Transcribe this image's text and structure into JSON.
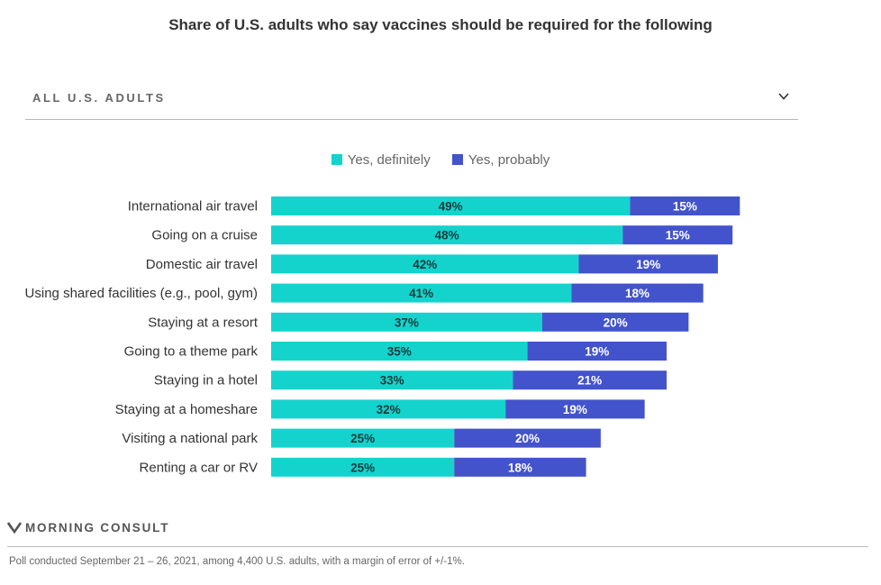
{
  "header": {
    "title": "Share of U.S. adults who say vaccines should be required for the following"
  },
  "filter": {
    "selected": "ALL U.S. ADULTS",
    "icon": "chevron-down-icon"
  },
  "colors": {
    "definitely": "#14d3cd",
    "probably": "#4353cc"
  },
  "chart_data": {
    "type": "bar",
    "orientation": "horizontal",
    "stacked": true,
    "categories": [
      "International air travel",
      "Going on a cruise",
      "Domestic air travel",
      "Using shared facilities (e.g., pool, gym)",
      "Staying at a resort",
      "Going to a theme park",
      "Staying in a hotel",
      "Staying at a homeshare",
      "Visiting a national park",
      "Renting a car or RV"
    ],
    "series": [
      {
        "name": "Yes, definitely",
        "values": [
          49,
          48,
          42,
          41,
          37,
          35,
          33,
          32,
          25,
          25
        ]
      },
      {
        "name": "Yes, probably",
        "values": [
          15,
          15,
          19,
          18,
          20,
          19,
          21,
          19,
          20,
          18
        ]
      }
    ],
    "value_suffix": "%",
    "legend": "top-center",
    "grid": false
  },
  "brand": {
    "logo_text": "MORNING CONSULT",
    "logo_icon": "morning-consult-logo-icon"
  },
  "footnote": "Poll conducted September 21 – 26, 2021, among 4,400 U.S. adults, with a margin of error of +/-1%."
}
